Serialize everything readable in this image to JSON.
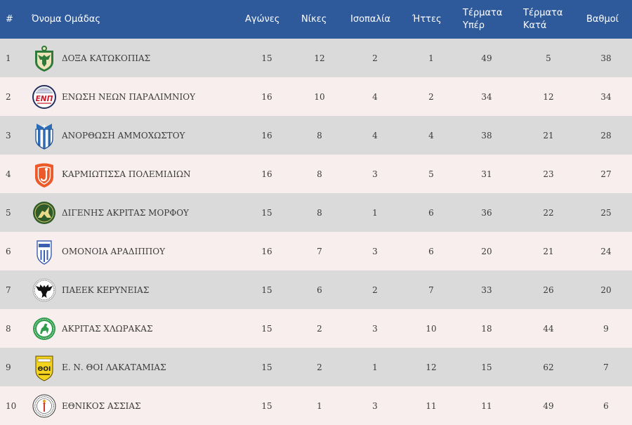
{
  "header": {
    "rank": "#",
    "team": "Όνομα Ομάδας",
    "played": "Αγώνες",
    "wins": "Νίκες",
    "draws": "Ισοπαλία",
    "losses": "Ήττες",
    "goals_for": "Τέρματα Υπέρ",
    "goals_against": "Τέρματα Κατά",
    "points": "Βαθμοί"
  },
  "colors": {
    "header_bg": "#2e5a9c",
    "header_text": "#ffffff",
    "row_odd": "#dadada",
    "row_even": "#f9eeee",
    "text": "#3a3a3a"
  },
  "rows": [
    {
      "rank": 1,
      "team": "ΔΟΞΑ ΚΑΤΩΚΟΠΙΑΣ",
      "logo": "doxa-katokopias-crest-icon",
      "played": 15,
      "wins": 12,
      "draws": 2,
      "losses": 1,
      "goals_for": 49,
      "goals_against": 5,
      "points": 38
    },
    {
      "rank": 2,
      "team": "ΕΝΩΣΗ ΝΕΩΝ ΠΑΡΑΛΙΜΝΙΟΥ",
      "logo": "enosi-neon-paralimniou-crest-icon",
      "logo_text": "ΕΝΠ",
      "played": 16,
      "wins": 10,
      "draws": 4,
      "losses": 2,
      "goals_for": 34,
      "goals_against": 12,
      "points": 34
    },
    {
      "rank": 3,
      "team": "ΑΝΟΡΘΩΣΗ ΑΜΜΟΧΩΣΤΟΥ",
      "logo": "anorthosis-crest-icon",
      "played": 16,
      "wins": 8,
      "draws": 4,
      "losses": 4,
      "goals_for": 38,
      "goals_against": 21,
      "points": 28
    },
    {
      "rank": 4,
      "team": "ΚΑΡΜΙΩΤΙΣΣΑ ΠΟΛΕΜΙΔΙΩΝ",
      "logo": "karmiotissa-crest-icon",
      "played": 16,
      "wins": 8,
      "draws": 3,
      "losses": 5,
      "goals_for": 31,
      "goals_against": 23,
      "points": 27
    },
    {
      "rank": 5,
      "team": "ΔΙΓΕΝΗΣ ΑΚΡΙΤΑΣ ΜΟΡΦΟΥ",
      "logo": "digenis-morfou-crest-icon",
      "played": 15,
      "wins": 8,
      "draws": 1,
      "losses": 6,
      "goals_for": 36,
      "goals_against": 22,
      "points": 25
    },
    {
      "rank": 6,
      "team": "ΟΜΟΝΟΙΑ ΑΡΑΔΙΠΠΟΥ",
      "logo": "omonoia-aradippou-crest-icon",
      "played": 16,
      "wins": 7,
      "draws": 3,
      "losses": 6,
      "goals_for": 20,
      "goals_against": 21,
      "points": 24
    },
    {
      "rank": 7,
      "team": "ΠΑΕΕΚ ΚΕΡΥΝΕΙΑΣ",
      "logo": "paeek-eagle-crest-icon",
      "played": 15,
      "wins": 6,
      "draws": 2,
      "losses": 7,
      "goals_for": 33,
      "goals_against": 26,
      "points": 20
    },
    {
      "rank": 8,
      "team": "ΑΚΡΙΤΑΣ ΧΛΩΡΑΚΑΣ",
      "logo": "akritas-chloraka-crest-icon",
      "played": 15,
      "wins": 2,
      "draws": 3,
      "losses": 10,
      "goals_for": 18,
      "goals_against": 44,
      "points": 9
    },
    {
      "rank": 9,
      "team": "Ε. Ν. ΘΟΙ ΛΑΚΑΤΑΜΙΑΣ",
      "logo": "thoi-lakatamias-crest-icon",
      "logo_text": "ΘΟΙ",
      "played": 15,
      "wins": 2,
      "draws": 1,
      "losses": 12,
      "goals_for": 15,
      "goals_against": 62,
      "points": 7
    },
    {
      "rank": 10,
      "team": "ΕΘΝΙΚΟΣ ΑΣΣΙΑΣ",
      "logo": "ethnikos-assias-crest-icon",
      "played": 15,
      "wins": 1,
      "draws": 3,
      "losses": 11,
      "goals_for": 11,
      "goals_against": 49,
      "points": 6
    }
  ]
}
